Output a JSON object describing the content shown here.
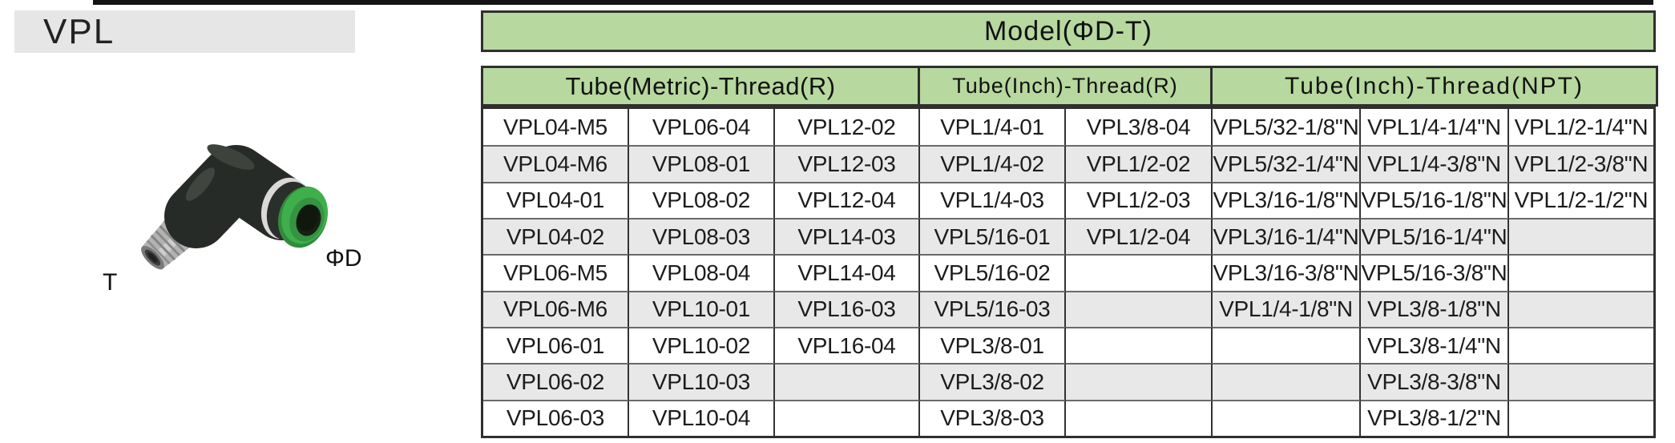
{
  "page": {
    "title": "VPL"
  },
  "figure": {
    "photo": "elbow-push-in-fitting",
    "labels": {
      "t": "T",
      "d": "ΦD"
    }
  },
  "table": {
    "title": "Model(ΦD-T)",
    "groups": [
      {
        "label": "Tube(Metric)-Thread(R)",
        "span": 3
      },
      {
        "label": "Tube(Inch)-Thread(R)",
        "span": 2
      },
      {
        "label": "Tube(Inch)-Thread(NPT)",
        "span": 3
      }
    ],
    "rows": [
      [
        "VPL04-M5",
        "VPL06-04",
        "VPL12-02",
        "VPL1/4-01",
        "VPL3/8-04",
        "VPL5/32-1/8\"N",
        "VPL1/4-1/4\"N",
        "VPL1/2-1/4\"N"
      ],
      [
        "VPL04-M6",
        "VPL08-01",
        "VPL12-03",
        "VPL1/4-02",
        "VPL1/2-02",
        "VPL5/32-1/4\"N",
        "VPL1/4-3/8\"N",
        "VPL1/2-3/8\"N"
      ],
      [
        "VPL04-01",
        "VPL08-02",
        "VPL12-04",
        "VPL1/4-03",
        "VPL1/2-03",
        "VPL3/16-1/8\"N",
        "VPL5/16-1/8\"N",
        "VPL1/2-1/2\"N"
      ],
      [
        "VPL04-02",
        "VPL08-03",
        "VPL14-03",
        "VPL5/16-01",
        "VPL1/2-04",
        "VPL3/16-1/4\"N",
        "VPL5/16-1/4\"N",
        ""
      ],
      [
        "VPL06-M5",
        "VPL08-04",
        "VPL14-04",
        "VPL5/16-02",
        "",
        "VPL3/16-3/8\"N",
        "VPL5/16-3/8\"N",
        ""
      ],
      [
        "VPL06-M6",
        "VPL10-01",
        "VPL16-03",
        "VPL5/16-03",
        "",
        "VPL1/4-1/8\"N",
        "VPL3/8-1/8\"N",
        ""
      ],
      [
        "VPL06-01",
        "VPL10-02",
        "VPL16-04",
        "VPL3/8-01",
        "",
        "",
        "VPL3/8-1/4\"N",
        ""
      ],
      [
        "VPL06-02",
        "VPL10-03",
        "",
        "VPL3/8-02",
        "",
        "",
        "VPL3/8-3/8\"N",
        ""
      ],
      [
        "VPL06-03",
        "VPL10-04",
        "",
        "VPL3/8-03",
        "",
        "",
        "VPL3/8-1/2\"N",
        ""
      ]
    ]
  },
  "colors": {
    "header_green": "#b7d89e",
    "row_alt_gray": "#e8e8e8",
    "title_bar_gray": "#e6e6e6",
    "border_dark": "#2f2f2f",
    "collar_green": "#3aa047"
  }
}
